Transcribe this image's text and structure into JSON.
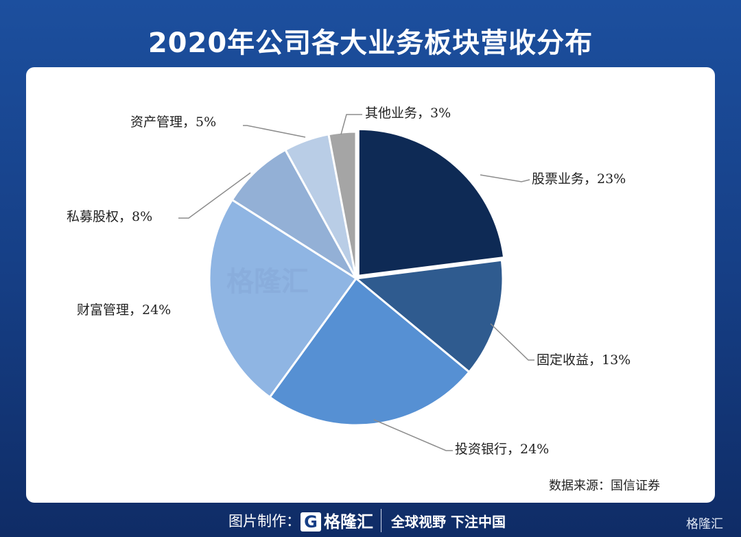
{
  "title": "2020年公司各大业务板块营收分布",
  "source": "数据来源：国信证券",
  "watermark": "格隆汇",
  "footer": {
    "made_by": "图片制作：",
    "logo": "格隆汇",
    "slogan": "全球视野 下注中国",
    "corner_logo": "格隆汇"
  },
  "chart_data": {
    "type": "pie",
    "title": "2020年公司各大业务板块营收分布",
    "start": "12 o'clock, clockwise",
    "slices": [
      {
        "label": "股票业务，23%",
        "name": "股票业务",
        "value": 23,
        "color": "#0e2a55"
      },
      {
        "label": "固定收益，13%",
        "name": "固定收益",
        "value": 13,
        "color": "#2f5b8f"
      },
      {
        "label": "投资银行，24%",
        "name": "投资银行",
        "value": 24,
        "color": "#5690d3"
      },
      {
        "label": "财富管理，24%",
        "name": "财富管理",
        "value": 24,
        "color": "#8fb5e3"
      },
      {
        "label": "私募股权，8%",
        "name": "私募股权",
        "value": 8,
        "color": "#93b0d6"
      },
      {
        "label": "资产管理，5%",
        "name": "资产管理",
        "value": 5,
        "color": "#b9cde6"
      },
      {
        "label": "其他业务，3%",
        "name": "其他业务",
        "value": 3,
        "color": "#a5a5a5"
      }
    ]
  }
}
